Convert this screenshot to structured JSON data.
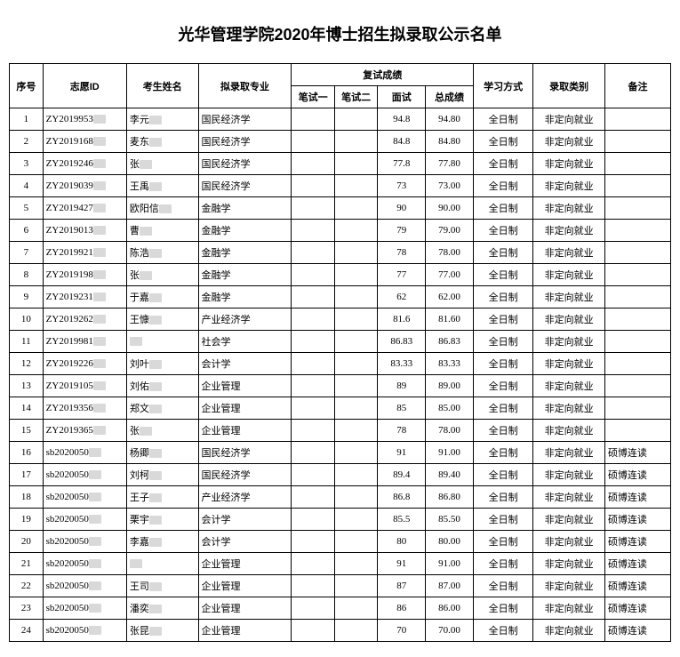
{
  "title": "光华管理学院2020年博士招生拟录取公示名单",
  "headers": {
    "seq": "序号",
    "appId": "志愿ID",
    "name": "考生姓名",
    "major": "拟录取专业",
    "retest": "复试成绩",
    "w1": "笔试一",
    "w2": "笔试二",
    "interview": "面试",
    "total": "总成绩",
    "mode": "学习方式",
    "type": "录取类别",
    "note": "备注"
  },
  "rows": [
    {
      "seq": "1",
      "id": "ZY2019953",
      "name": "李元",
      "major": "国民经济学",
      "w1": "",
      "w2": "",
      "int": "94.8",
      "tot": "94.80",
      "mode": "全日制",
      "type": "非定向就业",
      "note": ""
    },
    {
      "seq": "2",
      "id": "ZY2019168",
      "name": "麦东",
      "major": "国民经济学",
      "w1": "",
      "w2": "",
      "int": "84.8",
      "tot": "84.80",
      "mode": "全日制",
      "type": "非定向就业",
      "note": ""
    },
    {
      "seq": "3",
      "id": "ZY2019246",
      "name": "张",
      "major": "国民经济学",
      "w1": "",
      "w2": "",
      "int": "77.8",
      "tot": "77.80",
      "mode": "全日制",
      "type": "非定向就业",
      "note": ""
    },
    {
      "seq": "4",
      "id": "ZY2019039",
      "name": "王禹",
      "major": "国民经济学",
      "w1": "",
      "w2": "",
      "int": "73",
      "tot": "73.00",
      "mode": "全日制",
      "type": "非定向就业",
      "note": ""
    },
    {
      "seq": "5",
      "id": "ZY2019427",
      "name": "欧阳信",
      "major": "金融学",
      "w1": "",
      "w2": "",
      "int": "90",
      "tot": "90.00",
      "mode": "全日制",
      "type": "非定向就业",
      "note": ""
    },
    {
      "seq": "6",
      "id": "ZY2019013",
      "name": "曹",
      "major": "金融学",
      "w1": "",
      "w2": "",
      "int": "79",
      "tot": "79.00",
      "mode": "全日制",
      "type": "非定向就业",
      "note": ""
    },
    {
      "seq": "7",
      "id": "ZY2019921",
      "name": "陈浩",
      "major": "金融学",
      "w1": "",
      "w2": "",
      "int": "78",
      "tot": "78.00",
      "mode": "全日制",
      "type": "非定向就业",
      "note": ""
    },
    {
      "seq": "8",
      "id": "ZY2019198",
      "name": "张",
      "major": "金融学",
      "w1": "",
      "w2": "",
      "int": "77",
      "tot": "77.00",
      "mode": "全日制",
      "type": "非定向就业",
      "note": ""
    },
    {
      "seq": "9",
      "id": "ZY2019231",
      "name": "于嘉",
      "major": "金融学",
      "w1": "",
      "w2": "",
      "int": "62",
      "tot": "62.00",
      "mode": "全日制",
      "type": "非定向就业",
      "note": ""
    },
    {
      "seq": "10",
      "id": "ZY2019262",
      "name": "王慷",
      "major": "产业经济学",
      "w1": "",
      "w2": "",
      "int": "81.6",
      "tot": "81.60",
      "mode": "全日制",
      "type": "非定向就业",
      "note": ""
    },
    {
      "seq": "11",
      "id": "ZY2019981",
      "name": "",
      "major": "社会学",
      "w1": "",
      "w2": "",
      "int": "86.83",
      "tot": "86.83",
      "mode": "全日制",
      "type": "非定向就业",
      "note": ""
    },
    {
      "seq": "12",
      "id": "ZY2019226",
      "name": "刘叶",
      "major": "会计学",
      "w1": "",
      "w2": "",
      "int": "83.33",
      "tot": "83.33",
      "mode": "全日制",
      "type": "非定向就业",
      "note": ""
    },
    {
      "seq": "13",
      "id": "ZY2019105",
      "name": "刘佑",
      "major": "企业管理",
      "w1": "",
      "w2": "",
      "int": "89",
      "tot": "89.00",
      "mode": "全日制",
      "type": "非定向就业",
      "note": ""
    },
    {
      "seq": "14",
      "id": "ZY2019356",
      "name": "郑文",
      "major": "企业管理",
      "w1": "",
      "w2": "",
      "int": "85",
      "tot": "85.00",
      "mode": "全日制",
      "type": "非定向就业",
      "note": ""
    },
    {
      "seq": "15",
      "id": "ZY2019365",
      "name": "张",
      "major": "企业管理",
      "w1": "",
      "w2": "",
      "int": "78",
      "tot": "78.00",
      "mode": "全日制",
      "type": "非定向就业",
      "note": ""
    },
    {
      "seq": "16",
      "id": "sb2020050",
      "name": "杨卿",
      "major": "国民经济学",
      "w1": "",
      "w2": "",
      "int": "91",
      "tot": "91.00",
      "mode": "全日制",
      "type": "非定向就业",
      "note": "硕博连读"
    },
    {
      "seq": "17",
      "id": "sb2020050",
      "name": "刘柯",
      "major": "国民经济学",
      "w1": "",
      "w2": "",
      "int": "89.4",
      "tot": "89.40",
      "mode": "全日制",
      "type": "非定向就业",
      "note": "硕博连读"
    },
    {
      "seq": "18",
      "id": "sb2020050",
      "name": "王子",
      "major": "产业经济学",
      "w1": "",
      "w2": "",
      "int": "86.8",
      "tot": "86.80",
      "mode": "全日制",
      "type": "非定向就业",
      "note": "硕博连读"
    },
    {
      "seq": "19",
      "id": "sb2020050",
      "name": "栗宇",
      "major": "会计学",
      "w1": "",
      "w2": "",
      "int": "85.5",
      "tot": "85.50",
      "mode": "全日制",
      "type": "非定向就业",
      "note": "硕博连读"
    },
    {
      "seq": "20",
      "id": "sb2020050",
      "name": "李嘉",
      "major": "会计学",
      "w1": "",
      "w2": "",
      "int": "80",
      "tot": "80.00",
      "mode": "全日制",
      "type": "非定向就业",
      "note": "硕博连读"
    },
    {
      "seq": "21",
      "id": "sb2020050",
      "name": "",
      "major": "企业管理",
      "w1": "",
      "w2": "",
      "int": "91",
      "tot": "91.00",
      "mode": "全日制",
      "type": "非定向就业",
      "note": "硕博连读"
    },
    {
      "seq": "22",
      "id": "sb2020050",
      "name": "王司",
      "major": "企业管理",
      "w1": "",
      "w2": "",
      "int": "87",
      "tot": "87.00",
      "mode": "全日制",
      "type": "非定向就业",
      "note": "硕博连读"
    },
    {
      "seq": "23",
      "id": "sb2020050",
      "name": "潘奕",
      "major": "企业管理",
      "w1": "",
      "w2": "",
      "int": "86",
      "tot": "86.00",
      "mode": "全日制",
      "type": "非定向就业",
      "note": "硕博连读"
    },
    {
      "seq": "24",
      "id": "sb2020050",
      "name": "张昆",
      "major": "企业管理",
      "w1": "",
      "w2": "",
      "int": "70",
      "tot": "70.00",
      "mode": "全日制",
      "type": "非定向就业",
      "note": "硕博连读"
    }
  ],
  "style": {
    "title_fontsize": 18,
    "cell_fontsize": 11,
    "border_color": "#000000",
    "background": "#ffffff",
    "redact_color": "#d9d9d9"
  }
}
